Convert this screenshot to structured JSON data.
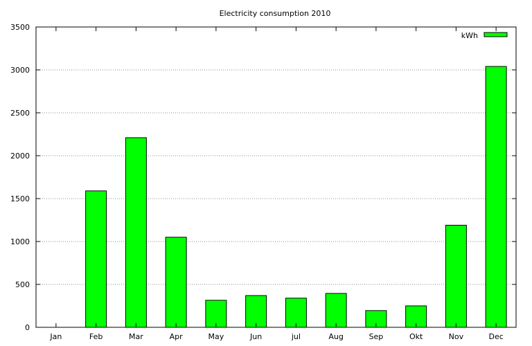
{
  "chart_data": {
    "type": "bar",
    "title": "Electricity consumption 2010",
    "xlabel": "",
    "ylabel": "",
    "categories": [
      "Jan",
      "Feb",
      "Mar",
      "Apr",
      "May",
      "Jun",
      "jul",
      "Aug",
      "Sep",
      "Okt",
      "Nov",
      "Dec"
    ],
    "series": [
      {
        "name": "kWh",
        "values": [
          0,
          1590,
          2210,
          1050,
          315,
          370,
          340,
          395,
          195,
          250,
          1190,
          3040
        ]
      }
    ],
    "ylim": [
      0,
      3500
    ],
    "yticks": [
      "0",
      "500",
      "1000",
      "1500",
      "2000",
      "2500",
      "3000",
      "3500"
    ],
    "ytick_values": [
      0,
      500,
      1000,
      1500,
      2000,
      2500,
      3000,
      3500
    ],
    "grid": true,
    "legend_position": "top-right",
    "colors": {
      "bar_fill": "#00ff00",
      "bar_stroke": "#000000",
      "grid": "#888888"
    }
  }
}
